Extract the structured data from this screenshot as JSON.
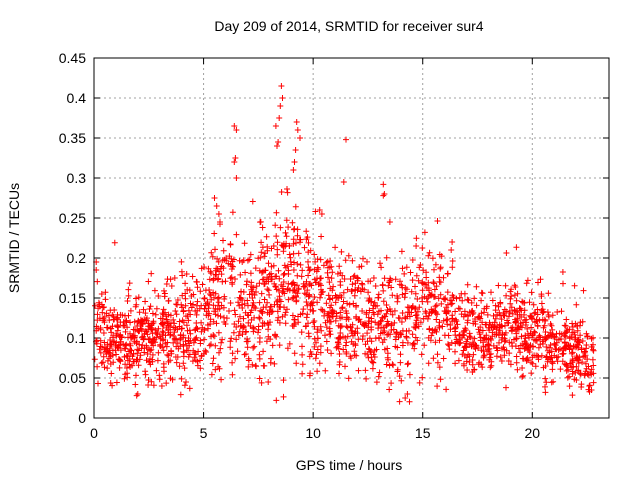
{
  "chart_data": {
    "type": "scatter",
    "title": "Day 209 of 2014, SRMTID for receiver sur4",
    "xlabel": "GPS time / hours",
    "ylabel": "SRMTID / TECUs",
    "xlim": [
      0,
      23.5
    ],
    "ylim": [
      0,
      0.45
    ],
    "x_ticks": [
      0,
      5,
      10,
      15,
      20
    ],
    "x_tick_labels": [
      "0",
      "5",
      "10",
      "15",
      "20"
    ],
    "y_ticks": [
      0,
      0.05,
      0.1,
      0.15,
      0.2,
      0.25,
      0.3,
      0.35,
      0.4,
      0.45
    ],
    "y_tick_labels": [
      "0",
      "0.05",
      "0.1",
      "0.15",
      "0.2",
      "0.25",
      "0.3",
      "0.35",
      "0.4",
      "0.45"
    ],
    "grid": true,
    "marker": "plus",
    "color": "#ff0000",
    "trend": [
      {
        "x": 0.0,
        "y": 0.105,
        "spread": 0.028
      },
      {
        "x": 1.0,
        "y": 0.1,
        "spread": 0.025
      },
      {
        "x": 2.0,
        "y": 0.095,
        "spread": 0.025
      },
      {
        "x": 3.0,
        "y": 0.105,
        "spread": 0.028
      },
      {
        "x": 4.0,
        "y": 0.11,
        "spread": 0.03
      },
      {
        "x": 5.0,
        "y": 0.12,
        "spread": 0.03
      },
      {
        "x": 6.0,
        "y": 0.16,
        "spread": 0.045
      },
      {
        "x": 7.0,
        "y": 0.13,
        "spread": 0.035
      },
      {
        "x": 8.0,
        "y": 0.15,
        "spread": 0.045
      },
      {
        "x": 9.0,
        "y": 0.175,
        "spread": 0.05
      },
      {
        "x": 10.0,
        "y": 0.15,
        "spread": 0.045
      },
      {
        "x": 11.0,
        "y": 0.13,
        "spread": 0.035
      },
      {
        "x": 12.0,
        "y": 0.125,
        "spread": 0.035
      },
      {
        "x": 13.0,
        "y": 0.13,
        "spread": 0.035
      },
      {
        "x": 14.0,
        "y": 0.11,
        "spread": 0.035
      },
      {
        "x": 15.0,
        "y": 0.14,
        "spread": 0.04
      },
      {
        "x": 16.0,
        "y": 0.13,
        "spread": 0.035
      },
      {
        "x": 17.0,
        "y": 0.1,
        "spread": 0.025
      },
      {
        "x": 18.0,
        "y": 0.1,
        "spread": 0.028
      },
      {
        "x": 19.0,
        "y": 0.12,
        "spread": 0.03
      },
      {
        "x": 20.0,
        "y": 0.1,
        "spread": 0.025
      },
      {
        "x": 21.0,
        "y": 0.09,
        "spread": 0.022
      },
      {
        "x": 22.0,
        "y": 0.085,
        "spread": 0.022
      },
      {
        "x": 22.8,
        "y": 0.07,
        "spread": 0.018
      }
    ],
    "x_range": [
      0.0,
      22.8
    ],
    "n_points": 2200,
    "outliers": [
      {
        "x": 8.55,
        "y": 0.415
      },
      {
        "x": 8.6,
        "y": 0.4
      },
      {
        "x": 8.5,
        "y": 0.39
      },
      {
        "x": 8.45,
        "y": 0.375
      },
      {
        "x": 8.4,
        "y": 0.345
      },
      {
        "x": 8.35,
        "y": 0.34
      },
      {
        "x": 8.3,
        "y": 0.365
      },
      {
        "x": 9.25,
        "y": 0.37
      },
      {
        "x": 9.3,
        "y": 0.36
      },
      {
        "x": 9.4,
        "y": 0.35
      },
      {
        "x": 9.2,
        "y": 0.335
      },
      {
        "x": 9.15,
        "y": 0.32
      },
      {
        "x": 9.1,
        "y": 0.31
      },
      {
        "x": 6.4,
        "y": 0.365
      },
      {
        "x": 6.5,
        "y": 0.36
      },
      {
        "x": 6.45,
        "y": 0.325
      },
      {
        "x": 6.4,
        "y": 0.32
      },
      {
        "x": 6.5,
        "y": 0.3
      },
      {
        "x": 11.5,
        "y": 0.348
      },
      {
        "x": 11.4,
        "y": 0.295
      },
      {
        "x": 13.2,
        "y": 0.292
      },
      {
        "x": 13.25,
        "y": 0.28
      },
      {
        "x": 13.2,
        "y": 0.278
      },
      {
        "x": 5.5,
        "y": 0.275
      },
      {
        "x": 5.6,
        "y": 0.265
      },
      {
        "x": 5.7,
        "y": 0.255
      },
      {
        "x": 5.75,
        "y": 0.245
      },
      {
        "x": 7.95,
        "y": 0.045
      },
      {
        "x": 14.2,
        "y": 0.025
      },
      {
        "x": 14.3,
        "y": 0.03
      },
      {
        "x": 1.95,
        "y": 0.028
      },
      {
        "x": 2.0,
        "y": 0.03
      },
      {
        "x": 20.6,
        "y": 0.032
      },
      {
        "x": 0.1,
        "y": 0.195
      },
      {
        "x": 0.1,
        "y": 0.185
      },
      {
        "x": 15.1,
        "y": 0.232
      },
      {
        "x": 13.5,
        "y": 0.245
      },
      {
        "x": 10.3,
        "y": 0.26
      },
      {
        "x": 10.4,
        "y": 0.255
      },
      {
        "x": 16.3,
        "y": 0.21
      },
      {
        "x": 14.7,
        "y": 0.215
      },
      {
        "x": 19.8,
        "y": 0.172
      },
      {
        "x": 21.4,
        "y": 0.168
      },
      {
        "x": 22.7,
        "y": 0.035
      },
      {
        "x": 22.6,
        "y": 0.04
      },
      {
        "x": 4.2,
        "y": 0.045
      },
      {
        "x": 5.8,
        "y": 0.048
      },
      {
        "x": 3.1,
        "y": 0.04
      }
    ]
  }
}
